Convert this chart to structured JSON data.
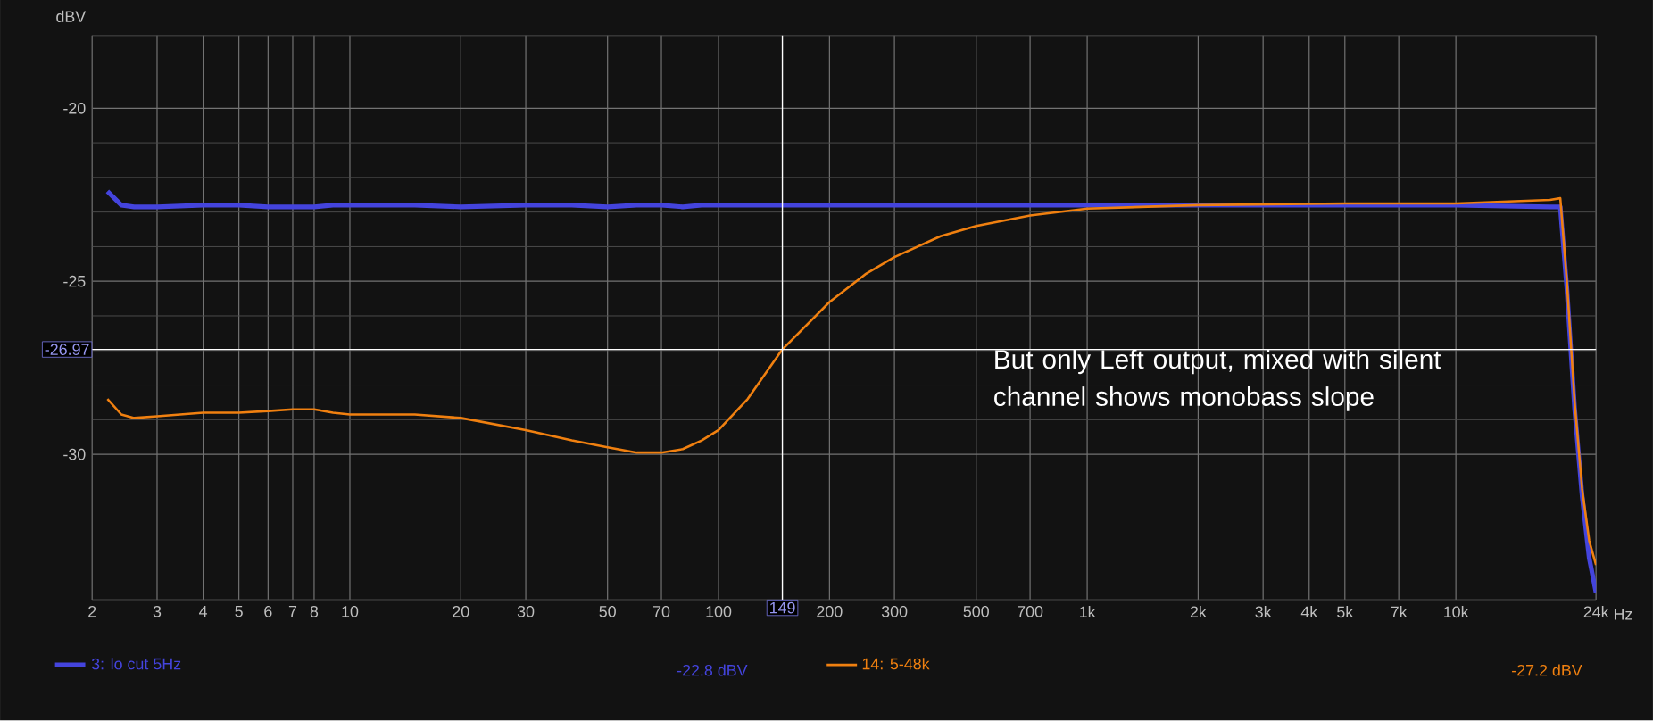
{
  "chart_data": {
    "type": "line",
    "ylabel": "dBV",
    "log": "x",
    "grid": true,
    "legend": "bottom",
    "line_style": "solid",
    "marker": "none",
    "xlim": [
      2,
      24000
    ],
    "ylim": [
      -34.2,
      -17.9
    ],
    "xticks": [
      2,
      3,
      4,
      5,
      6,
      7,
      8,
      10,
      20,
      30,
      50,
      70,
      100,
      200,
      300,
      500,
      700,
      {
        "value": 1000,
        "label": "1k"
      },
      {
        "value": 2000,
        "label": "2k"
      },
      {
        "value": 3000,
        "label": "3k"
      },
      {
        "value": 4000,
        "label": "4k"
      },
      {
        "value": 5000,
        "label": "5k"
      },
      {
        "value": 7000,
        "label": "7k"
      },
      {
        "value": 10000,
        "label": "10k"
      },
      {
        "value": 24000,
        "label": "24k"
      }
    ],
    "xlabel": "Hz",
    "yticks": [
      -20,
      -25,
      -30
    ],
    "x": [
      2.2,
      2.4,
      2.6,
      3,
      4,
      5,
      6,
      7,
      8,
      9,
      10,
      15,
      20,
      30,
      40,
      50,
      60,
      70,
      80,
      90,
      100,
      120,
      149,
      200,
      250,
      300,
      400,
      500,
      700,
      1000,
      2000,
      5000,
      10000,
      18000,
      19200,
      20000,
      21000,
      22000,
      23000,
      24000
    ],
    "series": [
      {
        "name": "3: lo cut 5Hz",
        "color": "#4444dd",
        "values": [
          -22.4,
          -22.8,
          -22.85,
          -22.85,
          -22.8,
          -22.8,
          -22.85,
          -22.85,
          -22.85,
          -22.8,
          -22.8,
          -22.8,
          -22.85,
          -22.8,
          -22.8,
          -22.85,
          -22.8,
          -22.8,
          -22.85,
          -22.8,
          -22.8,
          -22.8,
          -22.8,
          -22.8,
          -22.8,
          -22.8,
          -22.8,
          -22.8,
          -22.8,
          -22.8,
          -22.8,
          -22.8,
          -22.8,
          -22.85,
          -22.85,
          -25.2,
          -28.7,
          -31.2,
          -33,
          -34
        ]
      },
      {
        "name": "14: 5-48k",
        "color": "#f08010",
        "values": [
          -28.4,
          -28.85,
          -28.95,
          -28.9,
          -28.8,
          -28.8,
          -28.75,
          -28.7,
          -28.7,
          -28.8,
          -28.85,
          -28.85,
          -28.95,
          -29.3,
          -29.6,
          -29.8,
          -29.95,
          -29.95,
          -29.85,
          -29.6,
          -29.3,
          -28.4,
          -26.97,
          -25.6,
          -24.8,
          -24.3,
          -23.7,
          -23.4,
          -23.1,
          -22.9,
          -22.8,
          -22.75,
          -22.75,
          -22.65,
          -22.6,
          -25.0,
          -28.5,
          -31.0,
          -32.5,
          -33.2
        ]
      }
    ],
    "ref_lines": [
      {
        "axis": "x",
        "value": 149,
        "label": "149",
        "color": "#ffffff"
      },
      {
        "axis": "y",
        "value": -26.97,
        "label": "-26.97",
        "color": "#ffffff"
      }
    ],
    "annotations": [
      "But only Left output, mixed with silent channel shows monobass slope",
      "-22.8 dBV",
      "-27.2 dBV"
    ]
  }
}
